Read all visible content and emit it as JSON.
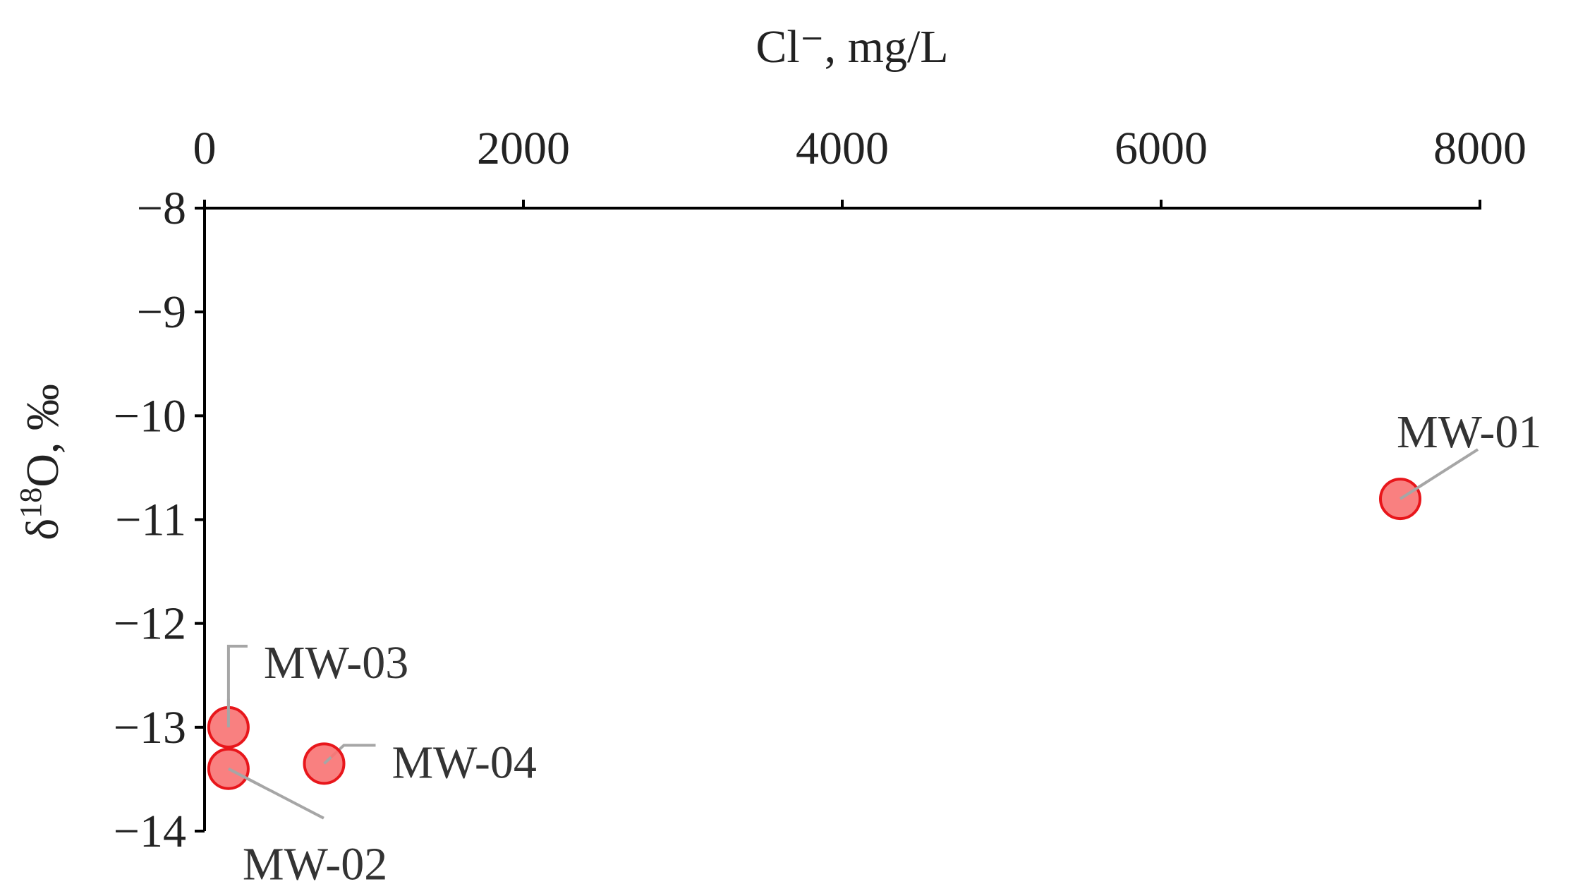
{
  "chart_data": {
    "type": "scatter",
    "xlabel": "Cl⁻, mg/L",
    "ylabel_parts": {
      "symbol": "δ",
      "sup": "18",
      "rest": "O, ‰"
    },
    "xlim": [
      0,
      8000
    ],
    "ylim": [
      -14,
      -8
    ],
    "x_ticks": [
      0,
      2000,
      4000,
      6000,
      8000
    ],
    "y_ticks": [
      -8,
      -9,
      -10,
      -11,
      -12,
      -13,
      -14
    ],
    "y_tick_labels": [
      "−8",
      "−9",
      "−10",
      "−11",
      "−12",
      "−13",
      "−14"
    ],
    "x_axis_position": "top",
    "grid": false,
    "marker_fill": "#f87575",
    "marker_stroke": "#e8161b",
    "leader_color": "#a6a6a6",
    "points": [
      {
        "label": "MW-01",
        "x": 7500,
        "y": -10.8
      },
      {
        "label": "MW-02",
        "x": 150,
        "y": -13.4
      },
      {
        "label": "MW-03",
        "x": 150,
        "y": -13.0
      },
      {
        "label": "MW-04",
        "x": 750,
        "y": -13.35
      }
    ]
  }
}
